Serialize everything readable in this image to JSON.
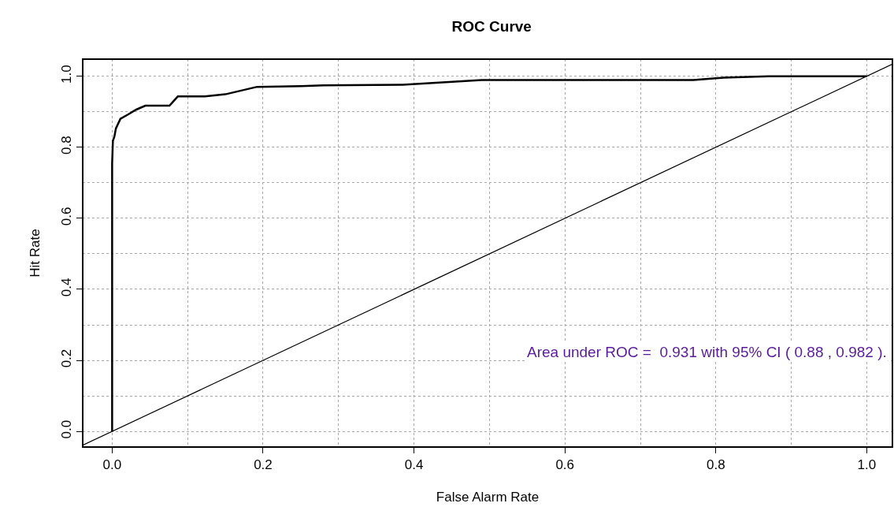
{
  "chart_data": {
    "type": "line",
    "title": "ROC Curve",
    "xlabel": "False Alarm Rate",
    "ylabel": "Hit Rate",
    "series": [
      {
        "color": "#000000",
        "x": [
          0,
          0,
          0.001,
          0.003,
          0.005,
          0.011,
          0.021,
          0.032,
          0.044,
          0.076,
          0.087,
          0.123,
          0.15,
          0.192,
          0.25,
          0.28,
          0.385,
          0.49,
          0.77,
          0.81,
          0.87,
          1.0
        ],
        "values": [
          0,
          0.754,
          0.818,
          0.83,
          0.853,
          0.88,
          0.892,
          0.906,
          0.917,
          0.917,
          0.943,
          0.943,
          0.949,
          0.97,
          0.972,
          0.974,
          0.976,
          0.989,
          0.989,
          0.996,
          1.0,
          1.0
        ]
      },
      {
        "color": "#000000",
        "x": [
          -0.039,
          1.034
        ],
        "values": [
          -0.039,
          1.034
        ]
      }
    ],
    "annotations": [
      "Area under ROC =  0.931 with 95% CI ( 0.88 , 0.982 )."
    ],
    "xlim": [
      -0.039,
      1.034
    ],
    "ylim": [
      -0.044,
      1.048
    ],
    "xticks": [
      {
        "value": 0,
        "label": "0.0"
      },
      0.2,
      0.4,
      0.6,
      0.8,
      {
        "value": 1,
        "label": "1.0"
      }
    ],
    "yticks": [
      {
        "value": 0,
        "label": "0.0"
      },
      0.2,
      0.4,
      0.6,
      0.8,
      {
        "value": 1,
        "label": "1.0"
      }
    ],
    "grid": true,
    "line_style": "solid",
    "marker": "none"
  }
}
